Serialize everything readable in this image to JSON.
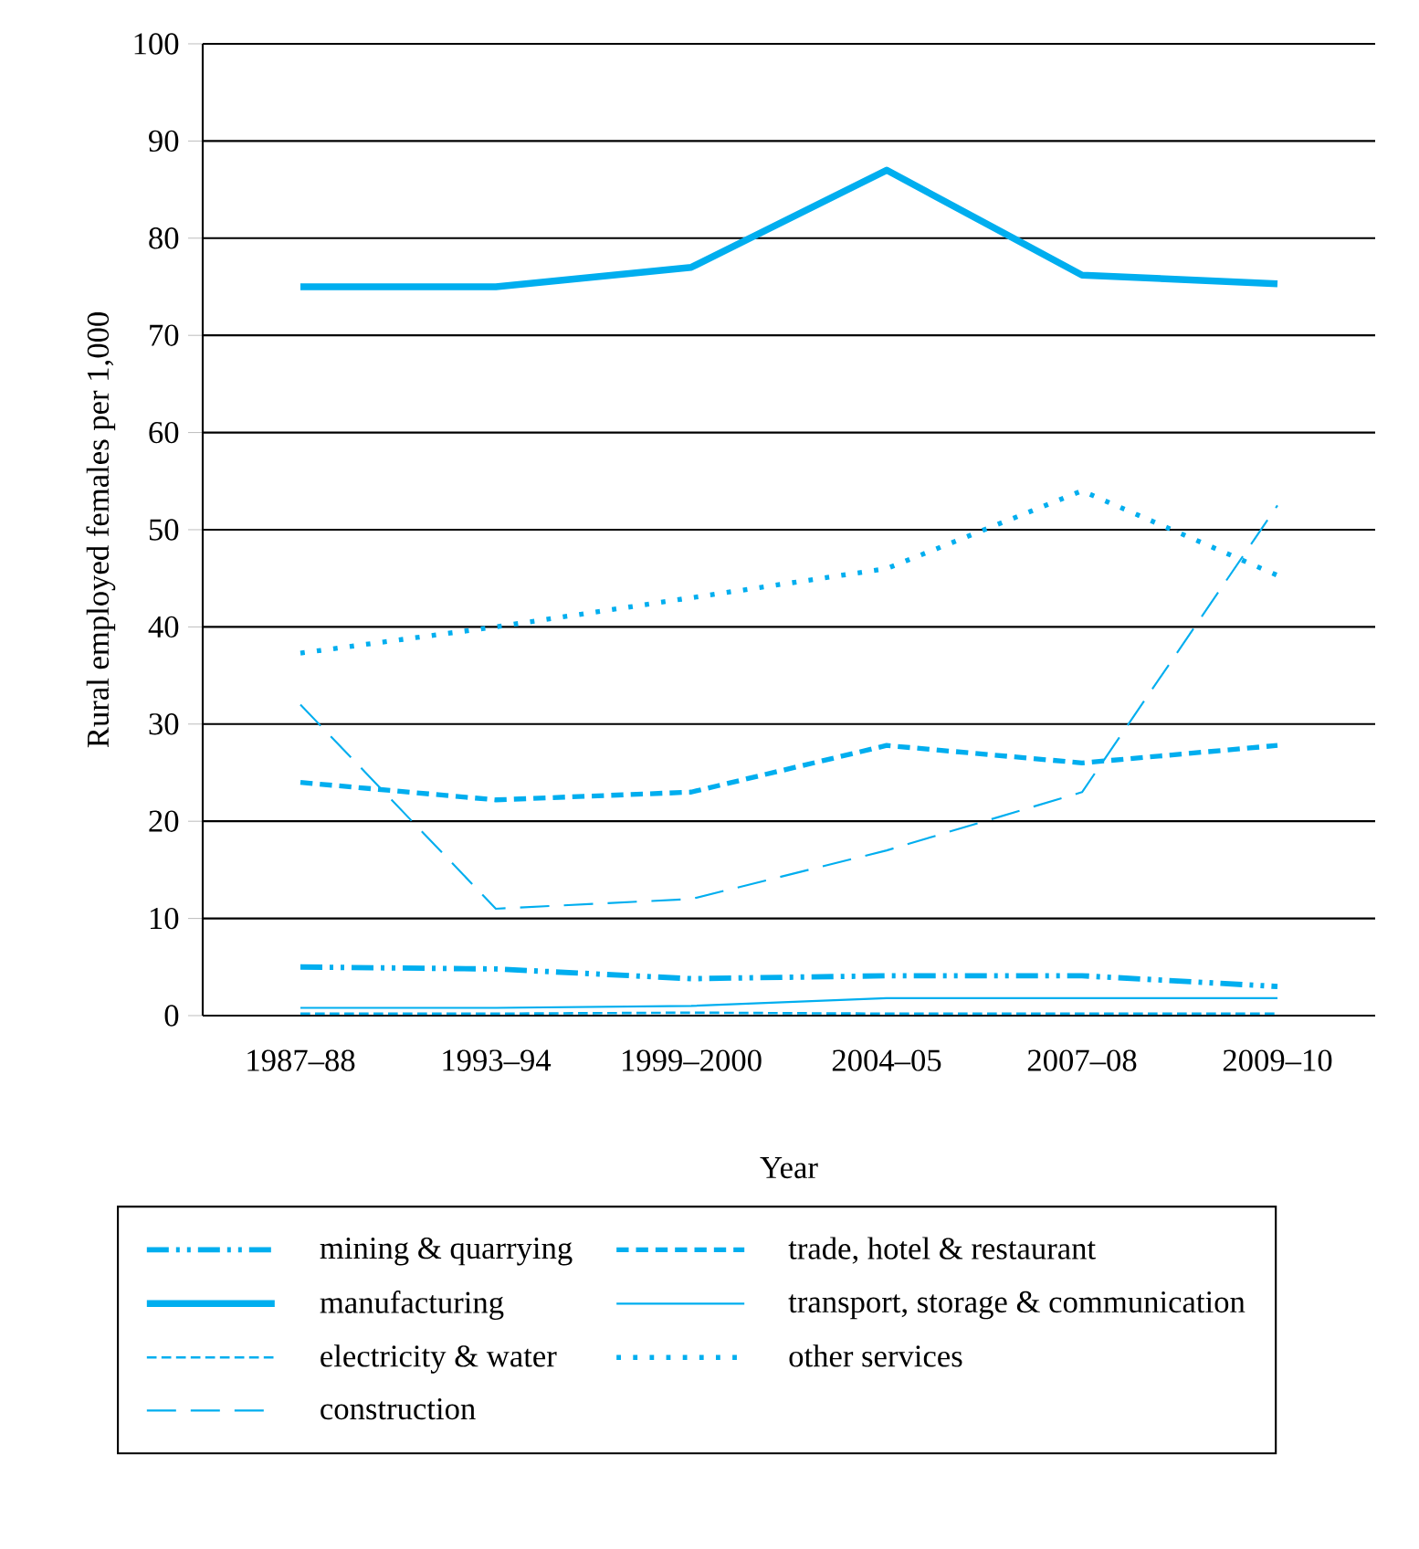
{
  "chart_data": {
    "type": "line",
    "xlabel": "Year",
    "ylabel": "Rural employed females per 1,000",
    "categories": [
      "1987–88",
      "1993–94",
      "1999–2000",
      "2004–05",
      "2007–08",
      "2009–10"
    ],
    "ylim": [
      0,
      100
    ],
    "yticks": [
      0,
      10,
      20,
      30,
      40,
      50,
      60,
      70,
      80,
      90,
      100
    ],
    "grid": "y",
    "legend": "bottom",
    "marker": "none",
    "series": [
      {
        "name": "mining & quarrying",
        "color": "#00aeef",
        "line_style": "dashdotdotted",
        "values": [
          5,
          4.8,
          3.8,
          4.1,
          4.1,
          3
        ]
      },
      {
        "name": "manufacturing",
        "color": "#00aeef",
        "line_style": "solid",
        "values": [
          75,
          75,
          77,
          87,
          76.2,
          75.3
        ]
      },
      {
        "name": "electricity & water",
        "color": "#00aeef",
        "line_style": "densely dashed",
        "values": [
          0.2,
          0.2,
          0.3,
          0.2,
          0.2,
          0.2
        ]
      },
      {
        "name": "construction",
        "color": "#00aeef",
        "line_style": "loosely dashed",
        "values": [
          32,
          11,
          12,
          17,
          23,
          52.5
        ]
      },
      {
        "name": "trade, hotel & restaurant",
        "color": "#00aeef",
        "line_style": "dashed",
        "values": [
          24,
          22.2,
          23,
          27.8,
          26,
          27.8
        ]
      },
      {
        "name": "transport, storage & communication",
        "color": "#00aeef",
        "line_style": "solid",
        "values": [
          0.8,
          0.8,
          1.0,
          1.8,
          1.8,
          1.8
        ]
      },
      {
        "name": "other services",
        "color": "#00aeef",
        "line_style": "dotted",
        "values": [
          37.3,
          40,
          43,
          46,
          54,
          45.3
        ]
      }
    ]
  }
}
